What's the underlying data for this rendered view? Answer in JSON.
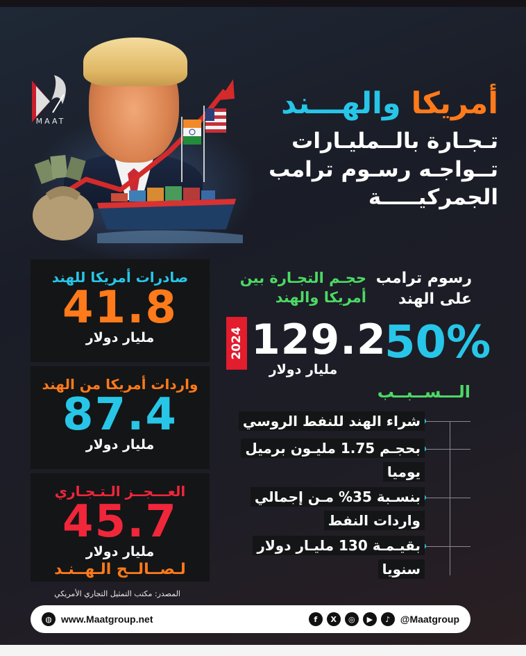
{
  "brand": {
    "logo_text": "MAAT"
  },
  "headline": {
    "title_part1": "أمريكا ",
    "title_part2": "والهـــند",
    "subtitle_line1": "تـجـارة بالــمليـارات",
    "subtitle_line2": "تــواجـه رسـوم ترامب",
    "subtitle_line3": "الجمركيـــــة"
  },
  "panels": {
    "exports": {
      "label": "صادرات أمريكا للهند",
      "value": "41.8",
      "unit": "مليار دولار",
      "color": "#ff7a1a",
      "label_color": "#27c6e8"
    },
    "imports": {
      "label": "واردات أمريكا من الهند",
      "value": "87.4",
      "unit": "مليار دولار",
      "color": "#27c6e8",
      "label_color": "#ff7a1a"
    },
    "deficit": {
      "label": "العـــجــز الـتـجـاري",
      "value": "45.7",
      "unit": "مليار دولار",
      "note": "لـصــالــح الـهــنـد",
      "color": "#f0263a"
    }
  },
  "trade_volume": {
    "label_line1": "حجـم التجـارة بين",
    "label_line2": "أمريكا والهند",
    "year": "2024",
    "value": "129.2",
    "unit": "مليار دولار"
  },
  "tariffs": {
    "label_line1": "رسوم ترامب",
    "label_line2": "على الهند",
    "value": "50%"
  },
  "reasons": {
    "title": "الـــســبــب",
    "items": [
      "شراء الهند للنفط الروسي",
      "بحجـم 1.75 مليـون برميل يوميا",
      "بنسـبة 35% مـن إجمالي واردات النفط",
      "بقيـمـة 130 مليـار دولار سنويا"
    ]
  },
  "source": "المصدر: مكتب التمثيل التجاري الأمريكي",
  "footer": {
    "website": "www.Maatgroup.net",
    "handle": "@Maatgroup",
    "social_icons": [
      "tiktok-icon",
      "youtube-icon",
      "instagram-icon",
      "x-icon",
      "facebook-icon"
    ]
  }
}
